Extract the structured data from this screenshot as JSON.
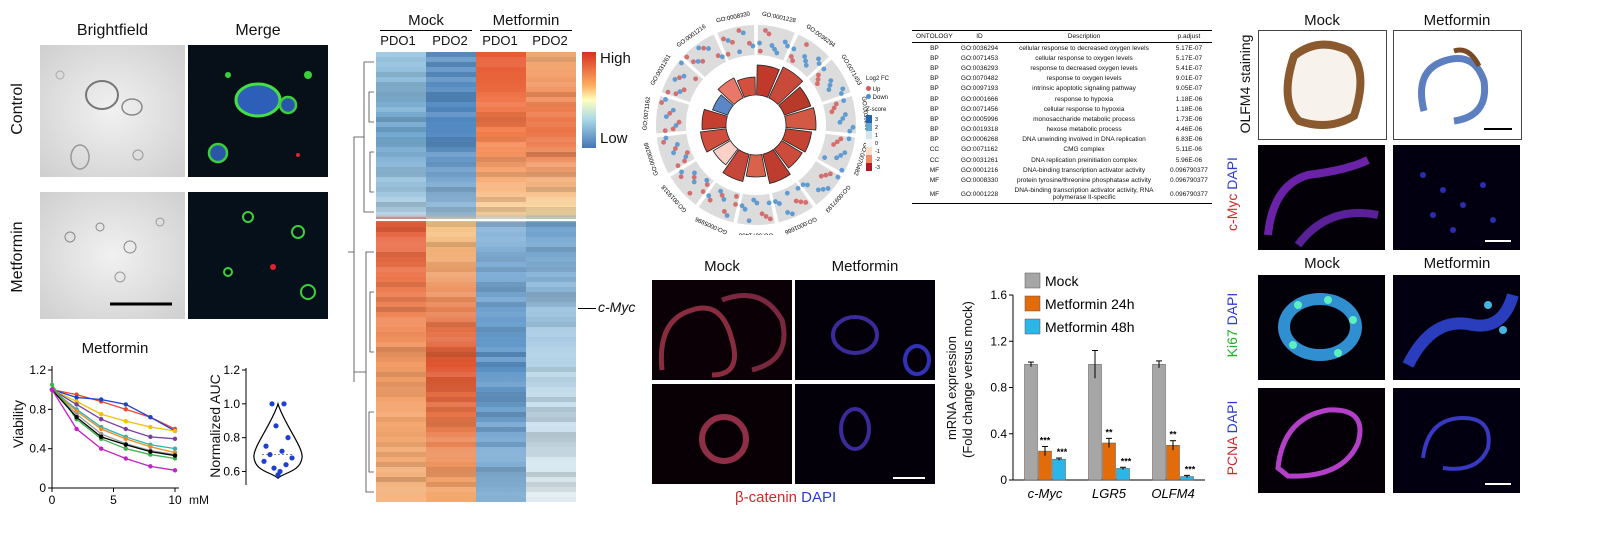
{
  "panelA": {
    "col_brightfield": "Brightfield",
    "col_merge": "Merge",
    "row_control": "Control",
    "row_metformin": "Metformin"
  },
  "panelB": {
    "chart_data": [
      {
        "type": "line",
        "title": "Metformin",
        "ylabel": "Viability",
        "xlabel": "",
        "x_unit": "mM",
        "x": [
          0,
          2,
          4,
          6,
          8,
          10
        ],
        "xticks": [
          "0",
          "5",
          "10"
        ],
        "yticks": [
          "0",
          "0.4",
          "0.8",
          "1.2"
        ],
        "xlim": [
          0,
          10
        ],
        "ylim": [
          0,
          1.2
        ],
        "series": [
          {
            "color": "#e6492d",
            "values": [
              1.0,
              0.95,
              0.88,
              0.8,
              0.72,
              0.6
            ]
          },
          {
            "color": "#1f3fd1",
            "values": [
              1.0,
              0.92,
              0.9,
              0.85,
              0.72,
              0.58
            ]
          },
          {
            "color": "#f2c200",
            "values": [
              1.0,
              0.88,
              0.75,
              0.68,
              0.62,
              0.58
            ]
          },
          {
            "color": "#7a3ea0",
            "values": [
              1.0,
              0.85,
              0.7,
              0.6,
              0.52,
              0.5
            ]
          },
          {
            "color": "#2bb3b0",
            "values": [
              1.0,
              0.8,
              0.62,
              0.52,
              0.44,
              0.4
            ]
          },
          {
            "color": "#f08c1e",
            "values": [
              1.0,
              0.78,
              0.6,
              0.5,
              0.42,
              0.36
            ]
          },
          {
            "color": "#999999",
            "values": [
              1.0,
              0.75,
              0.55,
              0.45,
              0.38,
              0.34
            ]
          },
          {
            "color": "#3cb44b",
            "values": [
              1.05,
              0.7,
              0.5,
              0.4,
              0.34,
              0.3
            ]
          },
          {
            "color": "#000000",
            "values": [
              1.0,
              0.72,
              0.52,
              0.44,
              0.37,
              0.33
            ]
          },
          {
            "color": "#c71fc7",
            "values": [
              1.0,
              0.6,
              0.4,
              0.3,
              0.22,
              0.18
            ]
          }
        ]
      },
      {
        "type": "scatter",
        "ylabel": "Normalized AUC",
        "yticks": [
          "0.6",
          "0.8",
          "1.0",
          "1.2"
        ],
        "ylim": [
          0.52,
          1.2
        ],
        "values": [
          1.0,
          1.0,
          0.87,
          0.8,
          0.75,
          0.72,
          0.7,
          0.68,
          0.66,
          0.64,
          0.62,
          0.6,
          0.58
        ]
      }
    ]
  },
  "panelC": {
    "group_mock": "Mock",
    "group_metformin": "Metformin",
    "samples": [
      "PDO1",
      "PDO2",
      "PDO1",
      "PDO2"
    ],
    "scale_high": "High",
    "scale_low": "Low",
    "gene_label": "c-Myc"
  },
  "panelD": {
    "go_terms": [
      "GO:0001228",
      "GO:0036294",
      "GO:0071453",
      "GO:0036293",
      "GO:0070482",
      "GO:0097193",
      "GO:0001666",
      "GO:0071456",
      "GO:0005996",
      "GO:0019318",
      "GO:0006268",
      "GO:0071162",
      "GO:0031261",
      "GO:0001216",
      "GO:0008330"
    ],
    "legend_logfc": "Log2 FC",
    "legend_up": "Up",
    "legend_down": "Down",
    "legend_zscore": "Z-score",
    "zscore_ticks": [
      "3",
      "2",
      "1",
      "0",
      "-1",
      "-2",
      "-3"
    ]
  },
  "panelE": {
    "headers": [
      "ONTOLOGY",
      "ID",
      "Description",
      "p.adjust"
    ],
    "rows": [
      [
        "BP",
        "GO:0036294",
        "cellular response to decreased oxygen levels",
        "5.17E-07"
      ],
      [
        "BP",
        "GO:0071453",
        "cellular response to oxygen levels",
        "5.17E-07"
      ],
      [
        "BP",
        "GO:0036293",
        "response to decreased oxygen levels",
        "5.41E-07"
      ],
      [
        "BP",
        "GO:0070482",
        "response to oxygen levels",
        "9.01E-07"
      ],
      [
        "BP",
        "GO:0097193",
        "intrinsic apoptotic signaling pathway",
        "9.05E-07"
      ],
      [
        "BP",
        "GO:0001666",
        "response to hypoxia",
        "1.18E-06"
      ],
      [
        "BP",
        "GO:0071456",
        "cellular response to hypoxia",
        "1.18E-06"
      ],
      [
        "BP",
        "GO:0005996",
        "monosaccharide metabolic process",
        "1.73E-06"
      ],
      [
        "BP",
        "GO:0019318",
        "hexose metabolic process",
        "4.46E-06"
      ],
      [
        "BP",
        "GO:0006268",
        "DNA unwinding involved in DNA replication",
        "6.83E-06"
      ],
      [
        "CC",
        "GO:0071162",
        "CMG complex",
        "5.11E-06"
      ],
      [
        "CC",
        "GO:0031261",
        "DNA replication preinitiation complex",
        "5.96E-06"
      ],
      [
        "MF",
        "GO:0001216",
        "DNA-binding transcription activator activity",
        "0.096790377"
      ],
      [
        "MF",
        "GO:0008330",
        "protein tyrosine/threonine phosphatase activity",
        "0.096790377"
      ],
      [
        "MF",
        "GO:0001228",
        "DNA-binding transcription activator activity, RNA polymerase II-specific",
        "0.096790377"
      ]
    ]
  },
  "panelF": {
    "col_mock": "Mock",
    "col_metformin": "Metformin",
    "stain_bcat": "β-catenin",
    "stain_dapi": "DAPI"
  },
  "panelG": {
    "chart_data": {
      "type": "bar",
      "ylabel_line1": "mRNA expression",
      "ylabel_line2": "(Fold change versus mock)",
      "categories": [
        "c-Myc",
        "LGR5",
        "OLFM4"
      ],
      "ylim": [
        0,
        1.6
      ],
      "yticks": [
        "0",
        "0.4",
        "0.8",
        "1.2",
        "1.6"
      ],
      "series": [
        {
          "name": "Mock",
          "color": "#a6a6a6",
          "values": [
            1.0,
            1.0,
            1.0
          ],
          "err": [
            0.02,
            0.12,
            0.03
          ],
          "sig": [
            "",
            "",
            ""
          ]
        },
        {
          "name": "Metformin 24h",
          "color": "#e36c0a",
          "values": [
            0.25,
            0.32,
            0.3
          ],
          "err": [
            0.04,
            0.04,
            0.04
          ],
          "sig": [
            "***",
            "**",
            "**"
          ]
        },
        {
          "name": "Metformin 48h",
          "color": "#2bb5e8",
          "values": [
            0.18,
            0.1,
            0.03
          ],
          "err": [
            0.01,
            0.01,
            0.01
          ],
          "sig": [
            "***",
            "***",
            "***"
          ]
        }
      ]
    }
  },
  "panelH": {
    "col_mock": "Mock",
    "col_metformin": "Metformin",
    "olfm4": "OLFM4 staining",
    "cmyc": "c-Myc",
    "ki67": "Ki67",
    "pcna": "PCNA",
    "dapi": "DAPI"
  }
}
